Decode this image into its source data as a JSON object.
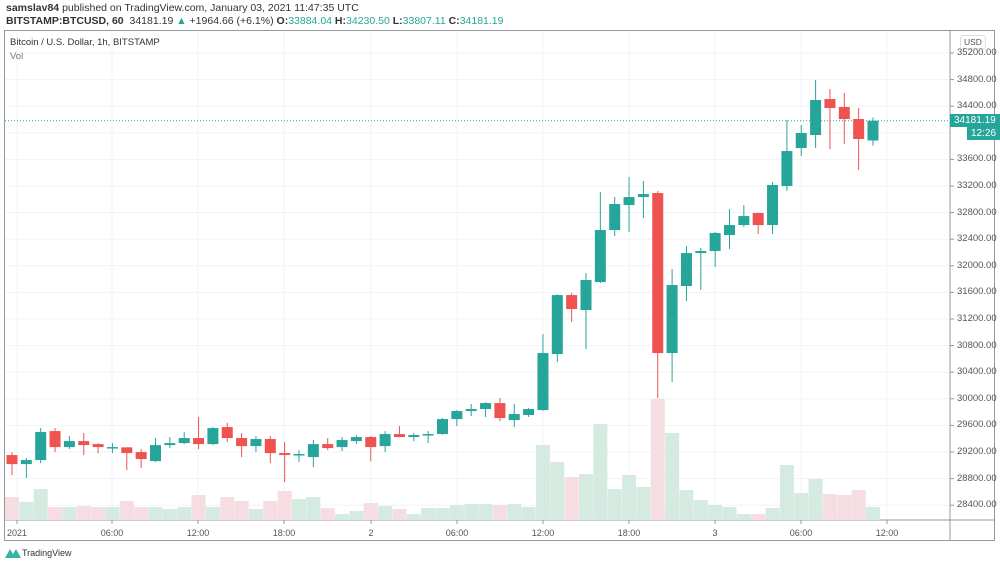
{
  "header": {
    "author": "samslav84",
    "published_text": "published on TradingView.com, January 03, 2021 11:47:35 UTC",
    "symbol": "BITSTAMP:BTCUSD, 60",
    "last": "34181.19",
    "change": "+1964.66 (+6.1%)",
    "o_label": "O:",
    "o": "33884.04",
    "h_label": "H:",
    "h": "34230.50",
    "l_label": "L:",
    "l": "33807.11",
    "c_label": "C:",
    "c": "34181.19"
  },
  "legend": {
    "title": "Bitcoin / U.S. Dollar, 1h, BITSTAMP",
    "vol": "Vol"
  },
  "currency": "USD",
  "last_price_tag": "34181.19",
  "countdown_tag": "12:26",
  "price_axis_labels": [
    "35200.00",
    "34800.00",
    "34400.00",
    "33600.00",
    "33200.00",
    "32800.00",
    "32400.00",
    "32000.00",
    "31600.00",
    "31200.00",
    "30800.00",
    "30400.00",
    "30000.00",
    "29600.00",
    "29200.00",
    "28800.00",
    "28400.00"
  ],
  "time_axis_labels": [
    "2021",
    "06:00",
    "12:00",
    "18:00",
    "2",
    "06:00",
    "12:00",
    "18:00",
    "3",
    "06:00",
    "12:00"
  ],
  "footer": {
    "brand": "TradingView"
  },
  "colors": {
    "up": "#26a69a",
    "down": "#ef5350",
    "up_vol": "#d5ebe1",
    "down_vol": "#f5dde1"
  },
  "chart_data": {
    "type": "candlestick",
    "interval": "1h",
    "price_range": [
      28200,
      35500
    ],
    "ohlc": [
      [
        29154,
        29199,
        28853,
        29018
      ],
      [
        29018,
        29110,
        28808,
        29079
      ],
      [
        29079,
        29560,
        29033,
        29500
      ],
      [
        29515,
        29560,
        29199,
        29274
      ],
      [
        29274,
        29440,
        29244,
        29364
      ],
      [
        29364,
        29485,
        29154,
        29304
      ],
      [
        29319,
        29334,
        29184,
        29274
      ],
      [
        29270,
        29334,
        29184,
        29274
      ],
      [
        29270,
        29270,
        28928,
        29184
      ],
      [
        29199,
        29244,
        28958,
        29094
      ],
      [
        29063,
        29410,
        29050,
        29304
      ],
      [
        29304,
        29425,
        29259,
        29334
      ],
      [
        29334,
        29500,
        29319,
        29410
      ],
      [
        29410,
        29726,
        29244,
        29319
      ],
      [
        29319,
        29575,
        29304,
        29560
      ],
      [
        29575,
        29640,
        29349,
        29410
      ],
      [
        29410,
        29485,
        29124,
        29289
      ],
      [
        29289,
        29440,
        29199,
        29395
      ],
      [
        29395,
        29440,
        29033,
        29184
      ],
      [
        29184,
        29349,
        28748,
        29154
      ],
      [
        29165,
        29229,
        29048,
        29170
      ],
      [
        29124,
        29380,
        28973,
        29319
      ],
      [
        29319,
        29410,
        29229,
        29259
      ],
      [
        29274,
        29425,
        29214,
        29380
      ],
      [
        29364,
        29455,
        29319,
        29425
      ],
      [
        29425,
        29440,
        29063,
        29274
      ],
      [
        29289,
        29515,
        29199,
        29470
      ],
      [
        29470,
        29590,
        29420,
        29425
      ],
      [
        29425,
        29485,
        29364,
        29455
      ],
      [
        29455,
        29515,
        29334,
        29470
      ],
      [
        29470,
        29711,
        29460,
        29695
      ],
      [
        29695,
        29831,
        29590,
        29816
      ],
      [
        29816,
        29921,
        29741,
        29846
      ],
      [
        29846,
        29950,
        29726,
        29936
      ],
      [
        29936,
        30011,
        29665,
        29711
      ],
      [
        29680,
        29921,
        29575,
        29771
      ],
      [
        29756,
        29861,
        29726,
        29846
      ],
      [
        29831,
        30974,
        29820,
        30688
      ],
      [
        30673,
        31575,
        30553,
        31560
      ],
      [
        31560,
        31590,
        31154,
        31350
      ],
      [
        31335,
        31891,
        30748,
        31786
      ],
      [
        31756,
        33109,
        31740,
        32538
      ],
      [
        32538,
        33034,
        32448,
        32929
      ],
      [
        32914,
        33335,
        32508,
        33034
      ],
      [
        33034,
        33275,
        32718,
        33079
      ],
      [
        33094,
        33124,
        30011,
        30688
      ],
      [
        30688,
        31951,
        30252,
        31711
      ],
      [
        31696,
        32297,
        31470,
        32192
      ],
      [
        32192,
        32267,
        31636,
        32222
      ],
      [
        32222,
        32508,
        31981,
        32493
      ],
      [
        32463,
        32854,
        32252,
        32613
      ],
      [
        32613,
        32914,
        32583,
        32748
      ],
      [
        32794,
        32800,
        32478,
        32613
      ],
      [
        32613,
        33260,
        32478,
        33215
      ],
      [
        33200,
        34192,
        33124,
        33726
      ],
      [
        33771,
        34117,
        33651,
        33997
      ],
      [
        33967,
        34794,
        33771,
        34493
      ],
      [
        34508,
        34659,
        33756,
        34373
      ],
      [
        34388,
        34598,
        33831,
        34207
      ],
      [
        34207,
        34373,
        33440,
        33907
      ],
      [
        33884.04,
        34230.5,
        33807.11,
        34181.19
      ]
    ],
    "volume_relative": [
      23,
      18,
      31,
      13,
      13,
      14,
      13,
      13,
      19,
      13,
      13,
      11,
      13,
      25,
      13,
      23,
      19,
      11,
      19,
      29,
      21,
      23,
      12,
      6,
      9,
      17,
      14,
      11,
      6,
      12,
      12,
      15,
      16,
      16,
      15,
      16,
      13,
      75,
      58,
      43,
      46,
      96,
      31,
      45,
      33,
      121,
      87,
      30,
      20,
      15,
      13,
      6,
      6,
      12,
      55,
      27,
      41,
      26,
      25,
      30,
      13
    ]
  }
}
